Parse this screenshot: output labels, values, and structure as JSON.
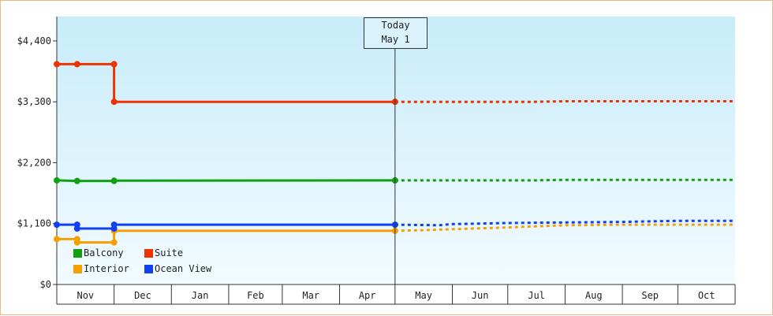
{
  "chart_data": {
    "type": "line",
    "title": "",
    "xlabel": "",
    "ylabel": "",
    "ylim": [
      0,
      4840
    ],
    "y_ticks": [
      {
        "value": 0,
        "label": "$0"
      },
      {
        "value": 1100,
        "label": "$1,100"
      },
      {
        "value": 2200,
        "label": "$2,200"
      },
      {
        "value": 3300,
        "label": "$3,300"
      },
      {
        "value": 4400,
        "label": "$4,400"
      }
    ],
    "x_domain": [
      "2023-10-31",
      "2024-11-01"
    ],
    "x_ticks": [
      {
        "label": "Nov",
        "start": "2023-10-31",
        "end": "2023-12-01"
      },
      {
        "label": "Dec",
        "start": "2023-12-01",
        "end": "2024-01-01"
      },
      {
        "label": "Jan",
        "start": "2024-01-01",
        "end": "2024-02-01"
      },
      {
        "label": "Feb",
        "start": "2024-02-01",
        "end": "2024-03-01"
      },
      {
        "label": "Mar",
        "start": "2024-03-01",
        "end": "2024-04-01"
      },
      {
        "label": "Apr",
        "start": "2024-04-01",
        "end": "2024-05-01"
      },
      {
        "label": "May",
        "start": "2024-05-01",
        "end": "2024-06-01"
      },
      {
        "label": "Jun",
        "start": "2024-06-01",
        "end": "2024-07-01"
      },
      {
        "label": "Jul",
        "start": "2024-07-01",
        "end": "2024-08-01"
      },
      {
        "label": "Aug",
        "start": "2024-08-01",
        "end": "2024-09-01"
      },
      {
        "label": "Sep",
        "start": "2024-09-01",
        "end": "2024-10-01"
      },
      {
        "label": "Oct",
        "start": "2024-10-01",
        "end": "2024-11-01"
      }
    ],
    "today": {
      "line1": "Today",
      "line2": "May 1",
      "date": "2024-05-01"
    },
    "grid": false,
    "legend_position": "bottom-left",
    "series": [
      {
        "name": "Balcony",
        "color": "#10a010",
        "history": [
          [
            "2023-10-31",
            1880
          ],
          [
            "2023-11-11",
            1870
          ],
          [
            "2023-12-01",
            1870
          ],
          [
            "2023-12-01",
            1875
          ],
          [
            "2024-05-01",
            1880
          ]
        ],
        "markers": [
          [
            "2023-10-31",
            1880
          ],
          [
            "2023-11-11",
            1870
          ],
          [
            "2023-12-01",
            1870
          ],
          [
            "2023-12-01",
            1875
          ],
          [
            "2024-05-01",
            1880
          ]
        ],
        "forecast": [
          [
            "2024-05-01",
            1880
          ],
          [
            "2024-07-15",
            1880
          ],
          [
            "2024-08-01",
            1890
          ],
          [
            "2024-11-01",
            1890
          ]
        ]
      },
      {
        "name": "Suite",
        "color": "#ee3300",
        "history": [
          [
            "2023-10-31",
            3980
          ],
          [
            "2023-11-11",
            3980
          ],
          [
            "2023-12-01",
            3980
          ],
          [
            "2023-12-01",
            3300
          ],
          [
            "2024-05-01",
            3300
          ]
        ],
        "markers": [
          [
            "2023-10-31",
            3980
          ],
          [
            "2023-11-11",
            3980
          ],
          [
            "2023-12-01",
            3980
          ],
          [
            "2023-12-01",
            3300
          ],
          [
            "2024-05-01",
            3300
          ]
        ],
        "forecast": [
          [
            "2024-05-01",
            3300
          ],
          [
            "2024-07-15",
            3300
          ],
          [
            "2024-08-01",
            3310
          ],
          [
            "2024-11-01",
            3310
          ]
        ]
      },
      {
        "name": "Interior",
        "color": "#f5a000",
        "history": [
          [
            "2023-10-31",
            820
          ],
          [
            "2023-11-11",
            820
          ],
          [
            "2023-11-11",
            760
          ],
          [
            "2023-12-01",
            760
          ],
          [
            "2023-12-01",
            970
          ],
          [
            "2024-05-01",
            970
          ]
        ],
        "markers": [
          [
            "2023-10-31",
            820
          ],
          [
            "2023-11-11",
            820
          ],
          [
            "2023-11-11",
            760
          ],
          [
            "2023-12-01",
            760
          ],
          [
            "2023-12-01",
            970
          ],
          [
            "2024-05-01",
            970
          ]
        ],
        "forecast": [
          [
            "2024-05-01",
            970
          ],
          [
            "2024-05-15",
            980
          ],
          [
            "2024-06-01",
            1000
          ],
          [
            "2024-07-01",
            1030
          ],
          [
            "2024-08-01",
            1070
          ],
          [
            "2024-09-01",
            1080
          ],
          [
            "2024-11-01",
            1080
          ]
        ]
      },
      {
        "name": "Ocean View",
        "color": "#1040f0",
        "history": [
          [
            "2023-10-31",
            1080
          ],
          [
            "2023-11-11",
            1080
          ],
          [
            "2023-11-11",
            1010
          ],
          [
            "2023-12-01",
            1010
          ],
          [
            "2023-12-01",
            1080
          ],
          [
            "2024-05-01",
            1080
          ]
        ],
        "markers": [
          [
            "2023-10-31",
            1080
          ],
          [
            "2023-11-11",
            1080
          ],
          [
            "2023-11-11",
            1010
          ],
          [
            "2023-12-01",
            1010
          ],
          [
            "2023-12-01",
            1080
          ],
          [
            "2024-05-01",
            1080
          ]
        ],
        "forecast": [
          [
            "2024-05-01",
            1080
          ],
          [
            "2024-05-25",
            1070
          ],
          [
            "2024-06-01",
            1090
          ],
          [
            "2024-07-01",
            1110
          ],
          [
            "2024-08-01",
            1120
          ],
          [
            "2024-09-01",
            1130
          ],
          [
            "2024-10-01",
            1150
          ],
          [
            "2024-11-01",
            1150
          ]
        ]
      }
    ]
  }
}
